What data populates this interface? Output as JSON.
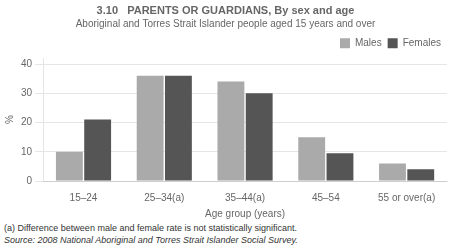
{
  "chart_data": {
    "type": "bar",
    "title": "3.10   PARENTS OR GUARDIANS, By sex and age",
    "subtitle": "Aboriginal and Torres Strait Islander people aged 15 years and over",
    "xlabel": "Age group (years)",
    "ylabel": "%",
    "categories": [
      "15–24",
      "25–34(a)",
      "35–44(a)",
      "45–54",
      "55 or over(a)"
    ],
    "series": [
      {
        "name": "Males",
        "color": "#aaaaaa",
        "values": [
          10,
          36,
          34,
          15,
          6
        ]
      },
      {
        "name": "Females",
        "color": "#555555",
        "values": [
          21,
          36,
          30,
          9.5,
          4
        ]
      }
    ],
    "ylim": [
      0,
      42
    ],
    "yticks": [
      0,
      10,
      20,
      30,
      40
    ],
    "grid": true,
    "legend": "upper right",
    "annotations": [
      "(a) Difference between male and female rate is not statistically significant.",
      "Source: 2008 National Aboriginal and Torres Strait Islander Social Survey."
    ]
  }
}
